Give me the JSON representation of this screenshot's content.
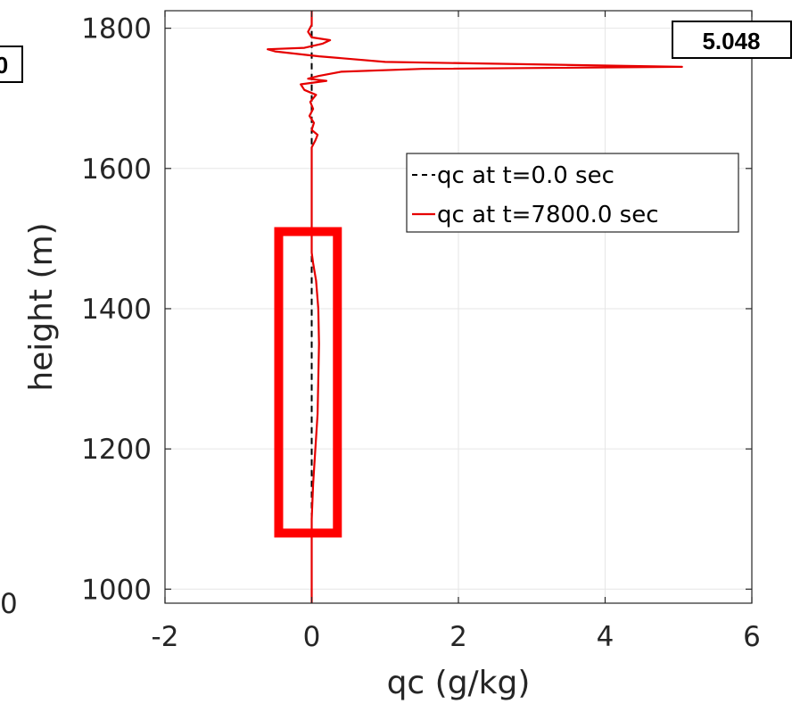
{
  "chart_data": {
    "type": "line",
    "xlabel": "qc (g/kg)",
    "ylabel": "height (m)",
    "xlim": [
      -2,
      6
    ],
    "ylim": [
      980,
      1825
    ],
    "x_ticks": [
      -2,
      0,
      2,
      4,
      6
    ],
    "x_tick_labels": [
      "-2",
      "0",
      "2",
      "4",
      "6"
    ],
    "y_ticks": [
      1000,
      1200,
      1400,
      1600,
      1800
    ],
    "y_tick_labels": [
      "1000",
      "1200",
      "1400",
      "1600",
      "1800"
    ],
    "grid": true,
    "legend_position": "upper-right",
    "series": [
      {
        "name": "qc at t=0.0 sec",
        "color": "#000000",
        "style": "dashed",
        "points": [
          [
            0,
            1100
          ],
          [
            0,
            1150
          ],
          [
            0,
            1200
          ],
          [
            0,
            1250
          ],
          [
            0,
            1300
          ],
          [
            0,
            1350
          ],
          [
            0,
            1400
          ],
          [
            0,
            1450
          ],
          [
            0,
            1475
          ],
          [
            0,
            1630
          ],
          [
            0,
            1660
          ],
          [
            0,
            1700
          ],
          [
            0,
            1740
          ],
          [
            0,
            1770
          ],
          [
            0,
            1800
          ],
          [
            0,
            1815
          ]
        ]
      },
      {
        "name": "qc at t=7800.0 sec",
        "color": "#e60000",
        "style": "solid",
        "points": [
          [
            0,
            980
          ],
          [
            0,
            1100
          ],
          [
            0.02,
            1150
          ],
          [
            0.05,
            1200
          ],
          [
            0.08,
            1250
          ],
          [
            0.09,
            1300
          ],
          [
            0.1,
            1350
          ],
          [
            0.09,
            1400
          ],
          [
            0.06,
            1440
          ],
          [
            0.02,
            1465
          ],
          [
            0,
            1480
          ],
          [
            0,
            1630
          ],
          [
            0.05,
            1640
          ],
          [
            0.08,
            1648
          ],
          [
            0,
            1655
          ],
          [
            0.03,
            1665
          ],
          [
            -0.03,
            1675
          ],
          [
            0.02,
            1685
          ],
          [
            -0.02,
            1695
          ],
          [
            0.06,
            1705
          ],
          [
            -0.1,
            1712
          ],
          [
            -0.15,
            1720
          ],
          [
            0.2,
            1725
          ],
          [
            -0.05,
            1728
          ],
          [
            0.1,
            1732
          ],
          [
            0.4,
            1738
          ],
          [
            1.5,
            1742
          ],
          [
            5.048,
            1745
          ],
          [
            1.0,
            1752
          ],
          [
            0.1,
            1760
          ],
          [
            -0.5,
            1767
          ],
          [
            -0.6,
            1770
          ],
          [
            -0.1,
            1772
          ],
          [
            0.15,
            1778
          ],
          [
            0.25,
            1783
          ],
          [
            0,
            1787
          ],
          [
            -0.05,
            1795
          ],
          [
            0,
            1805
          ],
          [
            0,
            1825
          ]
        ]
      }
    ],
    "annotations": [
      {
        "text": "5.048"
      },
      {
        "text": "0"
      }
    ],
    "left_edge_label": "0",
    "highlight_box": {
      "color": "#ff0000",
      "x_range": [
        -0.45,
        0.35
      ],
      "y_range": [
        1080,
        1510
      ]
    }
  }
}
